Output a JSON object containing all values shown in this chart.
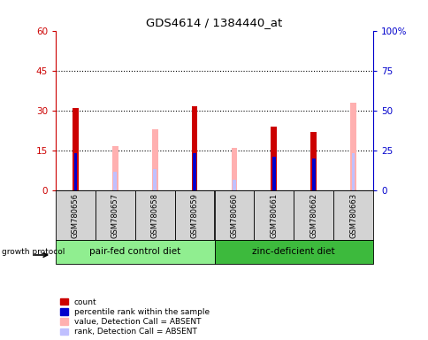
{
  "title": "GDS4614 / 1384440_at",
  "samples": [
    "GSM780656",
    "GSM780657",
    "GSM780658",
    "GSM780659",
    "GSM780660",
    "GSM780661",
    "GSM780662",
    "GSM780663"
  ],
  "count": [
    31,
    0,
    0,
    31.5,
    0,
    24,
    22,
    0
  ],
  "percentile_rank": [
    14,
    0,
    0,
    14,
    0,
    12.5,
    12,
    0
  ],
  "value_absent": [
    0,
    16.5,
    23,
    0,
    16,
    0,
    0,
    33
  ],
  "rank_absent": [
    0,
    7,
    8,
    0,
    4,
    0,
    0,
    14
  ],
  "left_ylim": [
    0,
    60
  ],
  "right_ylim": [
    0,
    100
  ],
  "left_yticks": [
    0,
    15,
    30,
    45,
    60
  ],
  "right_yticks": [
    0,
    25,
    50,
    75,
    100
  ],
  "right_yticklabels": [
    "0",
    "25",
    "50",
    "75",
    "100%"
  ],
  "hline_values": [
    15,
    30,
    45
  ],
  "group1_label": "pair-fed control diet",
  "group2_label": "zinc-deficient diet",
  "protocol_label": "growth protocol",
  "color_count": "#cc0000",
  "color_rank": "#0000cc",
  "color_value_absent": "#ffb0b0",
  "color_rank_absent": "#c0c0ff",
  "color_group1": "#90ee90",
  "color_group2": "#3dba3d",
  "bar_width": 0.15,
  "absent_bar_width": 0.15,
  "legend_items": [
    {
      "label": "count",
      "color": "#cc0000"
    },
    {
      "label": "percentile rank within the sample",
      "color": "#0000cc"
    },
    {
      "label": "value, Detection Call = ABSENT",
      "color": "#ffb0b0"
    },
    {
      "label": "rank, Detection Call = ABSENT",
      "color": "#c0c0ff"
    }
  ]
}
